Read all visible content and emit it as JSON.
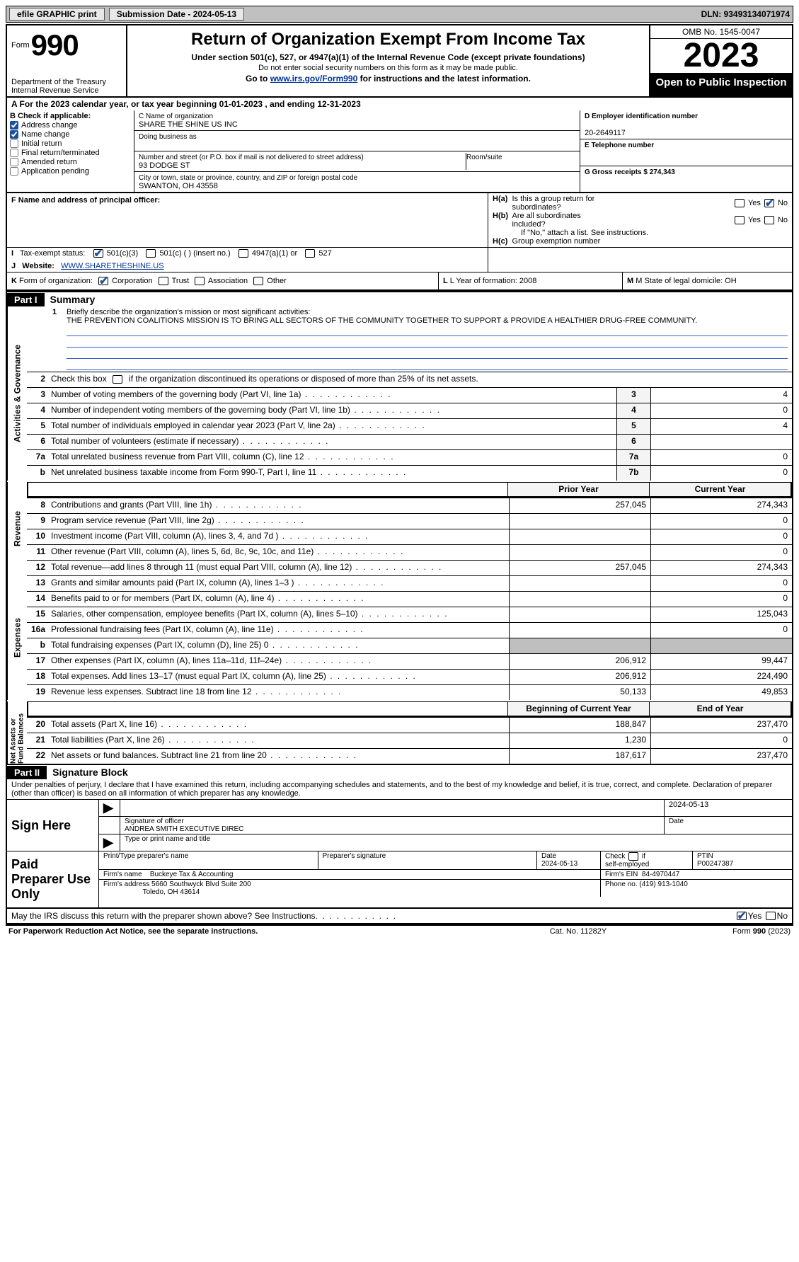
{
  "topbar": {
    "efile": "efile GRAPHIC print",
    "submission": "Submission Date - 2024-05-13",
    "dln": "DLN: 93493134071974"
  },
  "header": {
    "form_label": "Form",
    "form_number": "990",
    "title": "Return of Organization Exempt From Income Tax",
    "section": "Under section 501(c), 527, or 4947(a)(1) of the Internal Revenue Code (except private foundations)",
    "note": "Do not enter social security numbers on this form as it may be made public.",
    "go_prefix": "Go to ",
    "go_link": "www.irs.gov/Form990",
    "go_suffix": " for instructions and the latest information.",
    "dept": "Department of the Treasury\nInternal Revenue Service",
    "omb": "OMB No. 1545-0047",
    "year": "2023",
    "open": "Open to Public Inspection"
  },
  "rowA": "A  For the 2023 calendar year, or tax year beginning 01-01-2023   , and ending 12-31-2023",
  "boxB": {
    "label": "B Check if applicable:",
    "items": [
      {
        "label": "Address change",
        "checked": true
      },
      {
        "label": "Name change",
        "checked": true
      },
      {
        "label": "Initial return",
        "checked": false
      },
      {
        "label": "Final return/terminated",
        "checked": false
      },
      {
        "label": "Amended return",
        "checked": false
      },
      {
        "label": "Application pending",
        "checked": false
      }
    ]
  },
  "boxC": {
    "name_label": "C Name of organization",
    "name": "SHARE THE SHINE US INC",
    "dba_label": "Doing business as",
    "dba": "",
    "addr_label": "Number and street (or P.O. box if mail is not delivered to street address)",
    "room_label": "Room/suite",
    "addr": "93 DODGE ST",
    "city_label": "City or town, state or province, country, and ZIP or foreign postal code",
    "city": "SWANTON, OH  43558"
  },
  "boxD": {
    "label": "D Employer identification number",
    "value": "20-2649117"
  },
  "boxE": {
    "label": "E Telephone number",
    "value": ""
  },
  "boxG": {
    "label": "G Gross receipts $",
    "value": "274,343"
  },
  "boxF": {
    "label": "F  Name and address of principal officer:",
    "value": ""
  },
  "boxH": {
    "a_label": "H(a)  Is this a group return for subordinates?",
    "a_yes": false,
    "a_no": true,
    "b_label": "H(b)  Are all subordinates included?",
    "b_yes": false,
    "b_no": false,
    "b_note": "If \"No,\" attach a list. See instructions.",
    "c_label": "H(c)  Group exemption number"
  },
  "boxI": {
    "label": "I   Tax-exempt status:",
    "c501c3": true,
    "c501c_label": "501(c)(3)",
    "c501c_other_label": "501(c) (  ) (insert no.)",
    "c4947_label": "4947(a)(1) or",
    "c527_label": "527"
  },
  "boxJ": {
    "label": "J   Website:",
    "value": "WWW.SHARETHESHINE.US"
  },
  "boxK": {
    "label": "K Form of organization:",
    "corp": true,
    "trust": false,
    "assoc": false,
    "other": false,
    "corp_label": "Corporation",
    "trust_label": "Trust",
    "assoc_label": "Association",
    "other_label": "Other"
  },
  "boxL": {
    "label": "L Year of formation: 2008"
  },
  "boxM": {
    "label": "M State of legal domicile: OH"
  },
  "part1": {
    "header": "Part I",
    "title": "Summary",
    "mission_label": "Briefly describe the organization's mission or most significant activities:",
    "mission": "THE PREVENTION COALITIONS MISSION IS TO BRING ALL SECTORS OF THE COMMUNITY TOGETHER TO SUPPORT & PROVIDE A HEALTHIER DRUG-FREE COMMUNITY.",
    "line2": "Check this box      if the organization discontinued its operations or disposed of more than 25% of its net assets.",
    "gov_label": "Activities & Governance",
    "rev_label": "Revenue",
    "exp_label": "Expenses",
    "net_label": "Net Assets or Fund Balances",
    "gov_rows": [
      {
        "n": "3",
        "d": "Number of voting members of the governing body (Part VI, line 1a)",
        "box": "3",
        "val": "4"
      },
      {
        "n": "4",
        "d": "Number of independent voting members of the governing body (Part VI, line 1b)",
        "box": "4",
        "val": "0"
      },
      {
        "n": "5",
        "d": "Total number of individuals employed in calendar year 2023 (Part V, line 2a)",
        "box": "5",
        "val": "4"
      },
      {
        "n": "6",
        "d": "Total number of volunteers (estimate if necessary)",
        "box": "6",
        "val": ""
      },
      {
        "n": "7a",
        "d": "Total unrelated business revenue from Part VIII, column (C), line 12",
        "box": "7a",
        "val": "0"
      },
      {
        "n": "b",
        "d": "Net unrelated business taxable income from Form 990-T, Part I, line 11",
        "box": "7b",
        "val": "0"
      }
    ],
    "rev_hdr": {
      "prior": "Prior Year",
      "curr": "Current Year"
    },
    "rev_rows": [
      {
        "n": "8",
        "d": "Contributions and grants (Part VIII, line 1h)",
        "prior": "257,045",
        "curr": "274,343"
      },
      {
        "n": "9",
        "d": "Program service revenue (Part VIII, line 2g)",
        "prior": "",
        "curr": "0"
      },
      {
        "n": "10",
        "d": "Investment income (Part VIII, column (A), lines 3, 4, and 7d )",
        "prior": "",
        "curr": "0"
      },
      {
        "n": "11",
        "d": "Other revenue (Part VIII, column (A), lines 5, 6d, 8c, 9c, 10c, and 11e)",
        "prior": "",
        "curr": "0"
      },
      {
        "n": "12",
        "d": "Total revenue—add lines 8 through 11 (must equal Part VIII, column (A), line 12)",
        "prior": "257,045",
        "curr": "274,343"
      }
    ],
    "exp_rows": [
      {
        "n": "13",
        "d": "Grants and similar amounts paid (Part IX, column (A), lines 1–3 )",
        "prior": "",
        "curr": "0"
      },
      {
        "n": "14",
        "d": "Benefits paid to or for members (Part IX, column (A), line 4)",
        "prior": "",
        "curr": "0"
      },
      {
        "n": "15",
        "d": "Salaries, other compensation, employee benefits (Part IX, column (A), lines 5–10)",
        "prior": "",
        "curr": "125,043"
      },
      {
        "n": "16a",
        "d": "Professional fundraising fees (Part IX, column (A), line 11e)",
        "prior": "",
        "curr": "0"
      },
      {
        "n": "b",
        "d": "Total fundraising expenses (Part IX, column (D), line 25) 0",
        "prior": "grey",
        "curr": "grey"
      },
      {
        "n": "17",
        "d": "Other expenses (Part IX, column (A), lines 11a–11d, 11f–24e)",
        "prior": "206,912",
        "curr": "99,447"
      },
      {
        "n": "18",
        "d": "Total expenses. Add lines 13–17 (must equal Part IX, column (A), line 25)",
        "prior": "206,912",
        "curr": "224,490"
      },
      {
        "n": "19",
        "d": "Revenue less expenses. Subtract line 18 from line 12",
        "prior": "50,133",
        "curr": "49,853"
      }
    ],
    "net_hdr": {
      "prior": "Beginning of Current Year",
      "curr": "End of Year"
    },
    "net_rows": [
      {
        "n": "20",
        "d": "Total assets (Part X, line 16)",
        "prior": "188,847",
        "curr": "237,470"
      },
      {
        "n": "21",
        "d": "Total liabilities (Part X, line 26)",
        "prior": "1,230",
        "curr": "0"
      },
      {
        "n": "22",
        "d": "Net assets or fund balances. Subtract line 21 from line 20",
        "prior": "187,617",
        "curr": "237,470"
      }
    ]
  },
  "part2": {
    "header": "Part II",
    "title": "Signature Block",
    "decl": "Under penalties of perjury, I declare that I have examined this return, including accompanying schedules and statements, and to the best of my knowledge and belief, it is true, correct, and complete. Declaration of preparer (other than officer) is based on all information of which preparer has any knowledge.",
    "sign_here": "Sign Here",
    "sig_date": "2024-05-13",
    "sig_officer_label": "Signature of officer",
    "officer": "ANDREA SMITH  EXECUTIVE DIREC",
    "type_label": "Type or print name and title",
    "date_label": "Date",
    "paid": "Paid Preparer Use Only",
    "prep_name_label": "Print/Type preparer's name",
    "prep_sig_label": "Preparer's signature",
    "prep_date_label": "Date",
    "prep_date": "2024-05-13",
    "check_label": "Check        if self-employed",
    "ptin_label": "PTIN",
    "ptin": "P00247387",
    "firm_name_label": "Firm's name",
    "firm_name": "Buckeye Tax & Accounting",
    "firm_ein_label": "Firm's EIN",
    "firm_ein": "84-4970447",
    "firm_addr_label": "Firm's address",
    "firm_addr": "5660 Southwyck Blvd Suite 200",
    "firm_city": "Toledo, OH  43614",
    "phone_label": "Phone no.",
    "phone": "(419) 913-1040",
    "may": "May the IRS discuss this return with the preparer shown above? See Instructions.",
    "may_yes": true,
    "may_no": false
  },
  "footer": {
    "left": "For Paperwork Reduction Act Notice, see the separate instructions.",
    "mid": "Cat. No. 11282Y",
    "right": "Form 990 (2023)"
  }
}
